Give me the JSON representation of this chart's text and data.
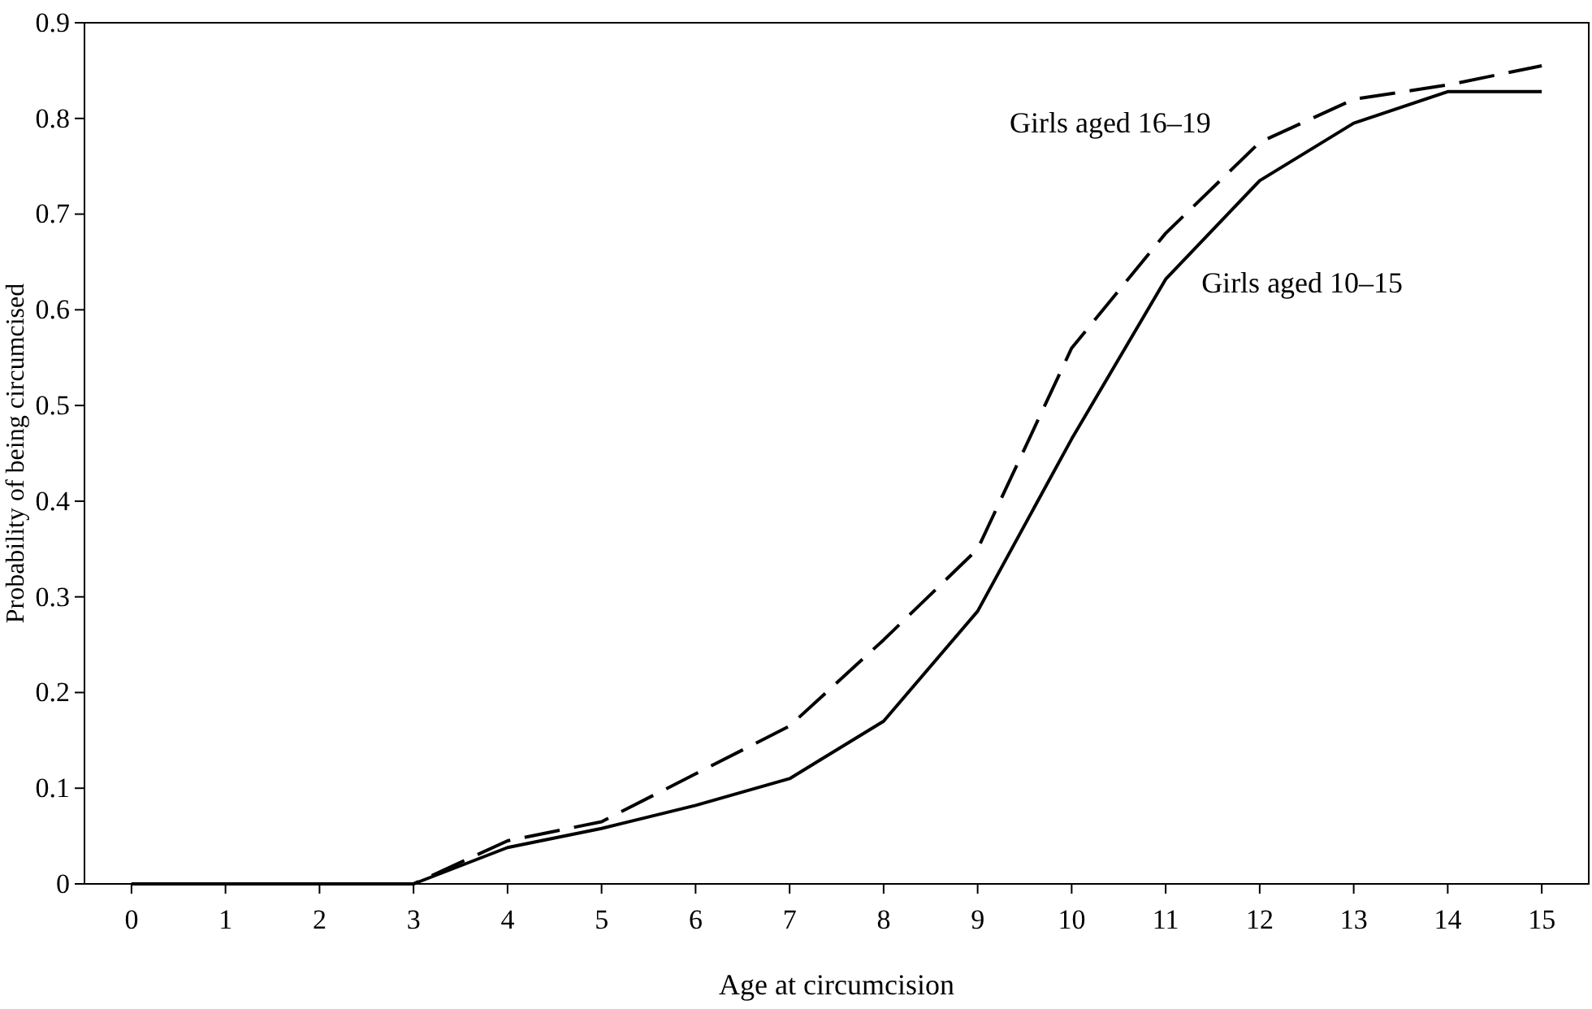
{
  "chart_data": {
    "type": "line",
    "xlabel": "Age at circumcision",
    "ylabel": "Probability of being circumcised",
    "x": [
      0,
      1,
      2,
      3,
      4,
      5,
      6,
      7,
      8,
      9,
      10,
      11,
      12,
      13,
      14,
      15
    ],
    "series": [
      {
        "name": "Girls aged 10–15",
        "color": "#000000",
        "line_style": "solid",
        "values": [
          0,
          0,
          0,
          0,
          0.038,
          0.058,
          0.082,
          0.11,
          0.17,
          0.285,
          0.465,
          0.632,
          0.735,
          0.795,
          0.828,
          0.828
        ]
      },
      {
        "name": "Girls aged 16–19",
        "color": "#000000",
        "line_style": "dashed",
        "values": [
          0,
          0,
          0,
          0,
          0.045,
          0.065,
          0.115,
          0.165,
          0.255,
          0.35,
          0.56,
          0.68,
          0.775,
          0.82,
          0.835,
          0.855
        ]
      }
    ],
    "xlim": [
      -0.5,
      15.5
    ],
    "xticks": [
      0,
      1,
      2,
      3,
      4,
      5,
      6,
      7,
      8,
      9,
      10,
      11,
      12,
      13,
      14,
      15
    ],
    "ylim": [
      0,
      0.9
    ],
    "yticks": [
      0,
      0.1,
      0.2,
      0.3,
      0.4,
      0.5,
      0.6,
      0.7,
      0.8,
      0.9
    ],
    "grid": false,
    "marker": "none"
  }
}
